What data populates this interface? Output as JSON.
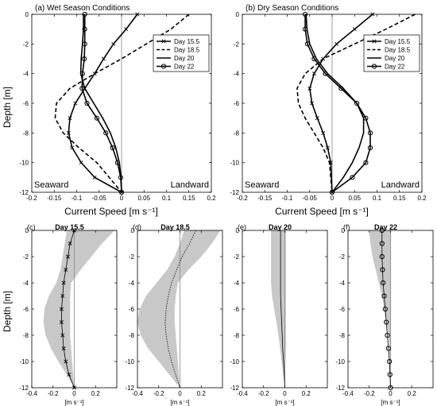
{
  "figure": {
    "ylabel": "Depth [m]",
    "top_xlabel": "Current Speed [m s⁻¹]",
    "bottom_xlabel": "[m s⁻¹]",
    "seaward_label": "Seaward",
    "landward_label": "Landward"
  },
  "chart_data": [
    {
      "type": "line",
      "title": "(a) Wet Season Conditions",
      "xlabel": "Current Speed [m s⁻¹]",
      "ylabel": "Depth [m]",
      "xlim": [
        -0.2,
        0.2
      ],
      "ylim": [
        -12,
        0
      ],
      "xticks": [
        "-0.2",
        "-0.15",
        "-0.1",
        "-0.05",
        "0",
        "0.05",
        "0.1",
        "0.15",
        "0.2"
      ],
      "yticks": [
        "0",
        "-2",
        "-4",
        "-6",
        "-8",
        "-10",
        "-12"
      ],
      "legend_position": "top-right",
      "series": [
        {
          "name": "Day 15.5",
          "marker": "x",
          "dash": "solid",
          "x": [
            0.035,
            0.01,
            -0.018,
            -0.04,
            -0.06,
            -0.082,
            -0.103,
            -0.115,
            -0.118,
            -0.11,
            -0.09,
            -0.06,
            0.0
          ],
          "y": [
            0,
            -1,
            -2,
            -3,
            -4,
            -5,
            -6,
            -7,
            -8,
            -9,
            -10,
            -11,
            -12
          ]
        },
        {
          "name": "Day 18.5",
          "marker": "none",
          "dash": "dashed",
          "x": [
            0.15,
            0.11,
            0.055,
            0.0,
            -0.06,
            -0.115,
            -0.145,
            -0.148,
            -0.13,
            -0.095,
            -0.055,
            0.0
          ],
          "y": [
            0,
            -1,
            -2,
            -3,
            -4,
            -5,
            -6,
            -7,
            -8,
            -9,
            -10,
            -12
          ]
        },
        {
          "name": "Day 20",
          "marker": "none",
          "dash": "solid",
          "x": [
            -0.085,
            -0.085,
            -0.087,
            -0.09,
            -0.091,
            -0.082,
            -0.062,
            -0.042,
            -0.025,
            -0.013,
            -0.005,
            -0.001,
            0.0
          ],
          "y": [
            0,
            -1,
            -2,
            -3,
            -4,
            -5,
            -6,
            -7,
            -8,
            -9,
            -10,
            -11,
            -12
          ]
        },
        {
          "name": "Day 22",
          "marker": "o",
          "dash": "solid",
          "x": [
            -0.082,
            -0.082,
            -0.082,
            -0.083,
            -0.087,
            -0.088,
            -0.077,
            -0.055,
            -0.035,
            -0.02,
            -0.009,
            -0.002,
            0.0
          ],
          "y": [
            0,
            -1,
            -2,
            -3,
            -4,
            -5,
            -6,
            -7,
            -8,
            -9,
            -10,
            -11,
            -12
          ]
        }
      ]
    },
    {
      "type": "line",
      "title": "(b) Dry Season Conditions",
      "xlabel": "Current Speed [m s⁻¹]",
      "ylabel": "",
      "xlim": [
        -0.2,
        0.2
      ],
      "ylim": [
        -12,
        0
      ],
      "xticks": [
        "-0.2",
        "-0.15",
        "-0.1",
        "-0.05",
        "0",
        "0.05",
        "0.1",
        "0.15",
        "0.2"
      ],
      "yticks": [
        "0",
        "-2",
        "-4",
        "-6",
        "-8",
        "-10",
        "-12"
      ],
      "legend_position": "top-right",
      "series": [
        {
          "name": "Day 15.5",
          "marker": "x",
          "dash": "solid",
          "x": [
            0.09,
            0.05,
            0.01,
            -0.02,
            -0.04,
            -0.05,
            -0.045,
            -0.033,
            -0.02,
            -0.01,
            -0.003,
            0.0
          ],
          "y": [
            0,
            -1,
            -2,
            -3,
            -4,
            -5,
            -6,
            -7,
            -8,
            -9,
            -10,
            -12
          ]
        },
        {
          "name": "Day 18.5",
          "marker": "none",
          "dash": "dashed",
          "x": [
            0.185,
            0.12,
            0.05,
            -0.02,
            -0.06,
            -0.078,
            -0.075,
            -0.06,
            -0.04,
            -0.02,
            -0.006,
            0.0
          ],
          "y": [
            0,
            -1,
            -2,
            -3,
            -4,
            -5,
            -6,
            -7,
            -8,
            -9,
            -10,
            -12
          ]
        },
        {
          "name": "Day 20",
          "marker": "none",
          "dash": "solid",
          "x": [
            -0.058,
            -0.056,
            -0.05,
            -0.035,
            -0.01,
            0.025,
            0.055,
            0.07,
            0.07,
            0.06,
            0.045,
            0.025,
            0.0
          ],
          "y": [
            0,
            -1,
            -2,
            -3,
            -4,
            -5,
            -6,
            -7,
            -8,
            -9,
            -10,
            -11,
            -12
          ]
        },
        {
          "name": "Day 22",
          "marker": "o",
          "dash": "solid",
          "x": [
            -0.06,
            -0.06,
            -0.055,
            -0.04,
            -0.015,
            0.02,
            0.055,
            0.075,
            0.085,
            0.085,
            0.075,
            0.045,
            0.0
          ],
          "y": [
            0,
            -1,
            -2,
            -3,
            -4,
            -5,
            -6,
            -7,
            -8,
            -9,
            -10,
            -11,
            -12
          ]
        }
      ]
    },
    {
      "type": "area",
      "title": "Day 15.5",
      "panel_label": "(c)",
      "xlim": [
        -0.4,
        0.4
      ],
      "ylim": [
        -12,
        0
      ],
      "xticks": [
        "-0.4",
        "-0.2",
        "0",
        "0.2"
      ],
      "yticks": [
        "0",
        "-2",
        "-4",
        "-6",
        "-8",
        "-10",
        "-12"
      ],
      "mean": {
        "marker": "x",
        "dash": "solid",
        "x": [
          0.0,
          -0.04,
          -0.06,
          -0.08,
          -0.1,
          -0.11,
          -0.12,
          -0.12,
          -0.11,
          -0.1,
          -0.08,
          -0.05,
          0.0
        ],
        "y": [
          0,
          -1,
          -2,
          -3,
          -4,
          -5,
          -6,
          -7,
          -8,
          -9,
          -10,
          -11,
          -12
        ]
      },
      "envelope": {
        "y": [
          0,
          -1,
          -2,
          -3,
          -4,
          -5,
          -6,
          -7,
          -8,
          -9,
          -10,
          -11,
          -12
        ],
        "low": [
          -0.07,
          -0.09,
          -0.11,
          -0.13,
          -0.17,
          -0.24,
          -0.28,
          -0.29,
          -0.27,
          -0.22,
          -0.15,
          -0.07,
          0.0
        ],
        "high": [
          0.38,
          0.26,
          0.16,
          0.06,
          -0.03,
          -0.04,
          -0.04,
          -0.04,
          -0.04,
          -0.03,
          -0.02,
          -0.01,
          0.0
        ]
      }
    },
    {
      "type": "area",
      "title": "Day 18.5",
      "panel_label": "(d)",
      "xlim": [
        -0.4,
        0.4
      ],
      "ylim": [
        -12,
        0
      ],
      "xticks": [
        "-0.4",
        "-0.2",
        "0",
        "0.2"
      ],
      "yticks": [
        "0",
        "-2",
        "-4",
        "-6",
        "-8",
        "-10",
        "-12"
      ],
      "mean": {
        "marker": "none",
        "dash": "dotted",
        "x": [
          0.15,
          0.09,
          0.02,
          -0.03,
          -0.08,
          -0.11,
          -0.13,
          -0.14,
          -0.13,
          -0.11,
          -0.08,
          -0.04,
          0.0
        ],
        "y": [
          0,
          -1,
          -2,
          -3,
          -4,
          -5,
          -6,
          -7,
          -8,
          -9,
          -10,
          -11,
          -12
        ]
      },
      "envelope": {
        "y": [
          0,
          -1,
          -2,
          -3,
          -4,
          -5,
          -6,
          -7,
          -8,
          -9,
          -10,
          -11,
          -12
        ],
        "low": [
          0.04,
          0.0,
          -0.05,
          -0.12,
          -0.22,
          -0.32,
          -0.38,
          -0.4,
          -0.37,
          -0.3,
          -0.2,
          -0.1,
          0.0
        ],
        "high": [
          0.38,
          0.3,
          0.2,
          0.08,
          -0.02,
          -0.04,
          -0.05,
          -0.05,
          -0.04,
          -0.03,
          -0.02,
          -0.01,
          0.0
        ]
      }
    },
    {
      "type": "area",
      "title": "Day 20",
      "panel_label": "(e)",
      "xlim": [
        -0.4,
        0.4
      ],
      "ylim": [
        -12,
        0
      ],
      "xticks": [
        "-0.4",
        "-0.2",
        "0",
        "0.2"
      ],
      "yticks": [
        "0",
        "-2",
        "-4",
        "-6",
        "-8",
        "-10",
        "-12"
      ],
      "mean": {
        "marker": "none",
        "dash": "solid",
        "x": [
          -0.04,
          -0.04,
          -0.04,
          -0.04,
          -0.04,
          -0.04,
          -0.035,
          -0.03,
          -0.025,
          -0.02,
          -0.012,
          -0.005,
          0.0
        ],
        "y": [
          0,
          -1,
          -2,
          -3,
          -4,
          -5,
          -6,
          -7,
          -8,
          -9,
          -10,
          -11,
          -12
        ]
      },
      "envelope": {
        "y": [
          0,
          -1,
          -2,
          -3,
          -4,
          -5,
          -6,
          -7,
          -8,
          -9,
          -10,
          -11,
          -12
        ],
        "low": [
          -0.13,
          -0.13,
          -0.13,
          -0.13,
          -0.13,
          -0.12,
          -0.1,
          -0.08,
          -0.06,
          -0.045,
          -0.03,
          -0.015,
          0.0
        ],
        "high": [
          0.01,
          0.01,
          0.01,
          0.01,
          0.01,
          0.01,
          0.01,
          0.01,
          0.01,
          0.01,
          0.005,
          0.002,
          0.0
        ]
      }
    },
    {
      "type": "area",
      "title": "Day 22",
      "panel_label": "(f)",
      "xlim": [
        -0.4,
        0.4
      ],
      "ylim": [
        -12,
        0
      ],
      "xticks": [
        "-0.4",
        "-0.2",
        "0",
        "0.2"
      ],
      "yticks": [
        "0",
        "-2",
        "-4",
        "-6",
        "-8",
        "-10",
        "-12"
      ],
      "mean": {
        "marker": "o",
        "dash": "solid",
        "x": [
          -0.08,
          -0.08,
          -0.08,
          -0.075,
          -0.07,
          -0.06,
          -0.05,
          -0.04,
          -0.03,
          -0.02,
          -0.01,
          -0.005,
          0.0
        ],
        "y": [
          0,
          -1,
          -2,
          -3,
          -4,
          -5,
          -6,
          -7,
          -8,
          -9,
          -10,
          -11,
          -12
        ]
      },
      "envelope": {
        "y": [
          0,
          -1,
          -2,
          -3,
          -4,
          -5,
          -6,
          -7,
          -8,
          -9,
          -10,
          -11,
          -12
        ],
        "low": [
          -0.2,
          -0.19,
          -0.17,
          -0.14,
          -0.11,
          -0.08,
          -0.06,
          -0.04,
          -0.02,
          -0.01,
          -0.005,
          -0.002,
          0.0
        ],
        "high": [
          0.005,
          0.005,
          0.005,
          0.005,
          0.005,
          0.005,
          0.005,
          0.005,
          0.005,
          0.005,
          0.003,
          0.001,
          0.0
        ]
      }
    }
  ]
}
